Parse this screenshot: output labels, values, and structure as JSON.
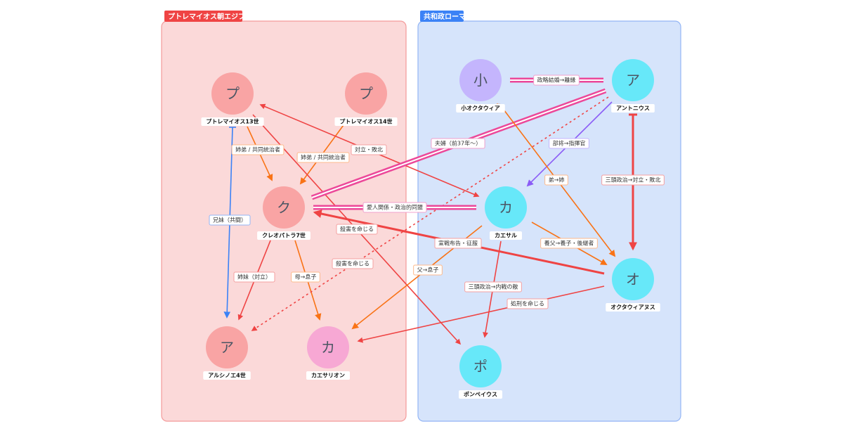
{
  "groups": {
    "egypt": {
      "label": "プトレマイオス朝エジプト",
      "color": "#ef4444"
    },
    "rome": {
      "label": "共和政ローマ",
      "color": "#3b82f6"
    }
  },
  "nodes": {
    "ptolemy13": {
      "initial": "プ",
      "name": "プトレマイオス13世"
    },
    "ptolemy14": {
      "initial": "プ",
      "name": "プトレマイオス14世"
    },
    "cleopatra": {
      "initial": "ク",
      "name": "クレオパトラ7世"
    },
    "arsinoe": {
      "initial": "ア",
      "name": "アルシノエ4世"
    },
    "caesarion": {
      "initial": "カ",
      "name": "カエサリオン"
    },
    "octavia": {
      "initial": "小",
      "name": "小オクタウィア"
    },
    "antony": {
      "initial": "ア",
      "name": "アントニウス"
    },
    "caesar": {
      "initial": "カ",
      "name": "カエサル"
    },
    "octavian": {
      "initial": "オ",
      "name": "オクタウィアヌス"
    },
    "pompey": {
      "initial": "ポ",
      "name": "ポンペイウス"
    }
  },
  "edges": [
    {
      "label": "姉弟 / 共同統治者"
    },
    {
      "label": "姉弟 / 共同統治者"
    },
    {
      "label": "対立・敗北"
    },
    {
      "label": "殺害を命じる"
    },
    {
      "label": "兄妹（共闘）"
    },
    {
      "label": "姉妹（対立）"
    },
    {
      "label": "母→息子"
    },
    {
      "label": "殺害を命じる"
    },
    {
      "label": "夫婦（前37年〜）"
    },
    {
      "label": "愛人関係・政治的同盟"
    },
    {
      "label": "政略結婚→離縁"
    },
    {
      "label": "部将→指揮官"
    },
    {
      "label": "弟→姉"
    },
    {
      "label": "三頭政治→対立・敗北"
    },
    {
      "label": "宣戦布告・征服"
    },
    {
      "label": "養父→養子・後継者"
    },
    {
      "label": "父→息子"
    },
    {
      "label": "三頭政治→内戦の敵"
    },
    {
      "label": "処刑を命じる"
    }
  ],
  "colors": {
    "red": "#ef4444",
    "orange": "#f97316",
    "blue": "#3b82f6",
    "pink": "#ec4899",
    "purple": "#8b5cf6"
  }
}
